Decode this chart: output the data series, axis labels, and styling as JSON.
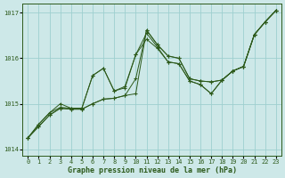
{
  "title": "Graphe pression niveau de la mer (hPa)",
  "bg_color": "#cde8e8",
  "line_color": "#2d5a1b",
  "grid_color": "#9ecfcf",
  "xlim": [
    -0.5,
    23.5
  ],
  "ylim": [
    1013.85,
    1017.2
  ],
  "yticks": [
    1014,
    1015,
    1016,
    1017
  ],
  "xticks": [
    0,
    1,
    2,
    3,
    4,
    5,
    6,
    7,
    8,
    9,
    10,
    11,
    12,
    13,
    14,
    15,
    16,
    17,
    18,
    19,
    20,
    21,
    22,
    23
  ],
  "series": [
    [
      1014.25,
      1014.5,
      1014.75,
      1014.9,
      1014.88,
      1014.88,
      1015.0,
      1015.1,
      1015.12,
      1015.18,
      1015.22,
      1016.62,
      1016.3,
      1016.05,
      1016.0,
      1015.55,
      1015.5,
      1015.48,
      1015.52,
      1015.72,
      1015.82,
      1016.52,
      1016.8,
      1017.05
    ],
    [
      1014.25,
      1014.5,
      1014.75,
      1014.9,
      1014.88,
      1014.88,
      1015.0,
      1015.1,
      1015.12,
      1015.18,
      1015.55,
      1016.62,
      1016.3,
      1016.05,
      1016.0,
      1015.55,
      1015.5,
      1015.48,
      1015.52,
      1015.72,
      1015.82,
      1016.52,
      1016.8,
      1017.05
    ],
    [
      1014.25,
      1014.55,
      1014.8,
      1014.92,
      1014.9,
      1014.9,
      1015.62,
      1015.78,
      1015.28,
      1015.35,
      1016.08,
      1016.55,
      1016.25,
      1015.92,
      1015.88,
      1015.5,
      1015.42,
      1015.22,
      1015.52,
      1015.72,
      1015.82,
      1016.52,
      1016.8,
      1017.05
    ],
    [
      1014.25,
      1014.55,
      1014.8,
      1015.0,
      1014.9,
      1014.9,
      1015.62,
      1015.78,
      1015.28,
      1015.38,
      1016.08,
      1016.42,
      1016.22,
      1015.92,
      1015.88,
      1015.5,
      1015.42,
      1015.22,
      1015.52,
      1015.72,
      1015.82,
      1016.52,
      1016.8,
      1017.05
    ]
  ]
}
